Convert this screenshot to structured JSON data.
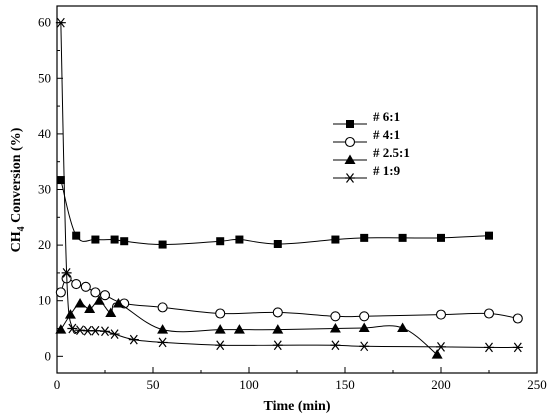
{
  "chart_data": {
    "type": "line",
    "title": "",
    "xlabel": "Time (min)",
    "ylabel": "CH4 Conversion (%)",
    "ylabel_main": "CH",
    "ylabel_sub": "4",
    "ylabel_rest": " Conversion (%)",
    "xlim": [
      0,
      250
    ],
    "ylim": [
      -3,
      63
    ],
    "xticks": [
      0,
      50,
      100,
      150,
      200,
      250
    ],
    "yticks": [
      0,
      10,
      20,
      30,
      40,
      50,
      60
    ],
    "grid": false,
    "legend_position": "center-right",
    "series": [
      {
        "name": "# 6:1",
        "marker": "filled-square",
        "x": [
          2,
          10,
          20,
          30,
          35,
          55,
          85,
          95,
          115,
          145,
          160,
          180,
          200,
          225
        ],
        "y": [
          31.7,
          21.7,
          21,
          21,
          20.7,
          20.1,
          20.7,
          21,
          20.2,
          21,
          21.3,
          21.3,
          21.3,
          21.7
        ]
      },
      {
        "name": "# 4:1",
        "marker": "open-circle",
        "x": [
          2,
          5,
          10,
          15,
          20,
          25,
          35,
          55,
          85,
          115,
          145,
          160,
          200,
          225,
          240
        ],
        "y": [
          11.5,
          14,
          13,
          12.5,
          11.5,
          11,
          9.5,
          8.8,
          7.7,
          7.9,
          7.2,
          7.2,
          7.5,
          7.7,
          6.8
        ]
      },
      {
        "name": "# 2.5:1",
        "marker": "filled-triangle",
        "x": [
          2,
          7,
          12,
          17,
          22,
          28,
          32,
          55,
          85,
          95,
          115,
          145,
          160,
          180,
          198
        ],
        "y": [
          4.8,
          7.5,
          9.5,
          8.5,
          10,
          7.8,
          9.5,
          4.8,
          4.8,
          4.8,
          4.8,
          5,
          5.1,
          5.1,
          0.3
        ]
      },
      {
        "name": "# 1:9",
        "marker": "asterisk",
        "x": [
          2,
          5,
          8,
          12,
          16,
          20,
          25,
          30,
          40,
          55,
          85,
          115,
          145,
          160,
          200,
          225,
          240
        ],
        "y": [
          60,
          15,
          5,
          4.7,
          4.6,
          4.6,
          4.5,
          4,
          3,
          2.5,
          2,
          2,
          2,
          1.8,
          1.7,
          1.6,
          1.6
        ]
      }
    ]
  }
}
